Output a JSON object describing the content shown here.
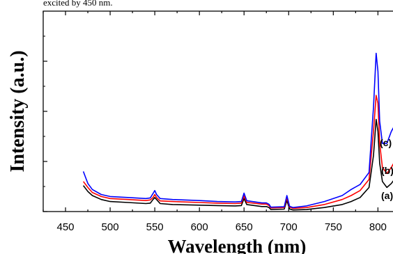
{
  "caption_fragment": "excited by 450 nm.",
  "chart_data": {
    "type": "line",
    "xlabel": "Wavelength (nm)",
    "ylabel": "Intensity (a.u.)",
    "xlim": [
      425,
      820
    ],
    "ylim": [
      0,
      100
    ],
    "x_ticks": [
      450,
      500,
      550,
      600,
      650,
      700,
      750,
      800
    ],
    "y_tick_labels_shown": false,
    "grid": false,
    "series": [
      {
        "name": "(a)",
        "color": "#000000",
        "points": [
          [
            470,
            13
          ],
          [
            475,
            10
          ],
          [
            480,
            8
          ],
          [
            490,
            6
          ],
          [
            500,
            5
          ],
          [
            520,
            4.5
          ],
          [
            540,
            4
          ],
          [
            545,
            4.2
          ],
          [
            548,
            6
          ],
          [
            550,
            7
          ],
          [
            552,
            6
          ],
          [
            556,
            4
          ],
          [
            570,
            3.5
          ],
          [
            600,
            3.2
          ],
          [
            620,
            3
          ],
          [
            640,
            2.8
          ],
          [
            647,
            3
          ],
          [
            650,
            6.5
          ],
          [
            653,
            3.5
          ],
          [
            670,
            2.5
          ],
          [
            675,
            2.5
          ],
          [
            678,
            2
          ],
          [
            680,
            1
          ],
          [
            695,
            1.2
          ],
          [
            698,
            5.5
          ],
          [
            701,
            1.3
          ],
          [
            705,
            0.8
          ],
          [
            720,
            1
          ],
          [
            740,
            2
          ],
          [
            760,
            3.5
          ],
          [
            770,
            5
          ],
          [
            780,
            7
          ],
          [
            790,
            12
          ],
          [
            795,
            28
          ],
          [
            798,
            46
          ],
          [
            800,
            40
          ],
          [
            802,
            24
          ],
          [
            805,
            15
          ],
          [
            810,
            12
          ],
          [
            815,
            14
          ],
          [
            820,
            17
          ]
        ]
      },
      {
        "name": "(b)",
        "color": "#ff0000",
        "points": [
          [
            470,
            15
          ],
          [
            475,
            12
          ],
          [
            480,
            9.5
          ],
          [
            490,
            7.5
          ],
          [
            500,
            6.5
          ],
          [
            520,
            6
          ],
          [
            540,
            5.5
          ],
          [
            545,
            5.8
          ],
          [
            548,
            7
          ],
          [
            550,
            8.5
          ],
          [
            552,
            7
          ],
          [
            556,
            5.3
          ],
          [
            570,
            5
          ],
          [
            600,
            4.5
          ],
          [
            620,
            4.2
          ],
          [
            640,
            4
          ],
          [
            647,
            4.2
          ],
          [
            650,
            7.8
          ],
          [
            653,
            4.6
          ],
          [
            670,
            3.7
          ],
          [
            675,
            3.7
          ],
          [
            678,
            3
          ],
          [
            680,
            1.8
          ],
          [
            695,
            2
          ],
          [
            698,
            6.8
          ],
          [
            701,
            2.2
          ],
          [
            705,
            1.6
          ],
          [
            720,
            2
          ],
          [
            740,
            3.5
          ],
          [
            760,
            6
          ],
          [
            770,
            8
          ],
          [
            780,
            10.5
          ],
          [
            790,
            16
          ],
          [
            795,
            40
          ],
          [
            798,
            58
          ],
          [
            800,
            54
          ],
          [
            802,
            34
          ],
          [
            805,
            22
          ],
          [
            810,
            19
          ],
          [
            815,
            22
          ],
          [
            820,
            26
          ]
        ]
      },
      {
        "name": "(c)",
        "color": "#0000ff",
        "points": [
          [
            470,
            20
          ],
          [
            475,
            14
          ],
          [
            480,
            11
          ],
          [
            490,
            8.5
          ],
          [
            500,
            7.5
          ],
          [
            520,
            7
          ],
          [
            540,
            6.5
          ],
          [
            545,
            6.8
          ],
          [
            548,
            9
          ],
          [
            550,
            10.5
          ],
          [
            552,
            8.5
          ],
          [
            556,
            6.5
          ],
          [
            570,
            6
          ],
          [
            600,
            5.5
          ],
          [
            620,
            5
          ],
          [
            640,
            4.8
          ],
          [
            647,
            5
          ],
          [
            650,
            9.2
          ],
          [
            653,
            5.4
          ],
          [
            670,
            4.3
          ],
          [
            675,
            4.3
          ],
          [
            678,
            3.6
          ],
          [
            680,
            2.2
          ],
          [
            695,
            2.4
          ],
          [
            698,
            8
          ],
          [
            701,
            2.6
          ],
          [
            705,
            2
          ],
          [
            720,
            2.8
          ],
          [
            740,
            5
          ],
          [
            760,
            8
          ],
          [
            770,
            11
          ],
          [
            780,
            13.5
          ],
          [
            790,
            19.5
          ],
          [
            795,
            52
          ],
          [
            798,
            79
          ],
          [
            800,
            70
          ],
          [
            802,
            45
          ],
          [
            805,
            34
          ],
          [
            810,
            34
          ],
          [
            815,
            40
          ],
          [
            820,
            44
          ]
        ]
      }
    ]
  }
}
